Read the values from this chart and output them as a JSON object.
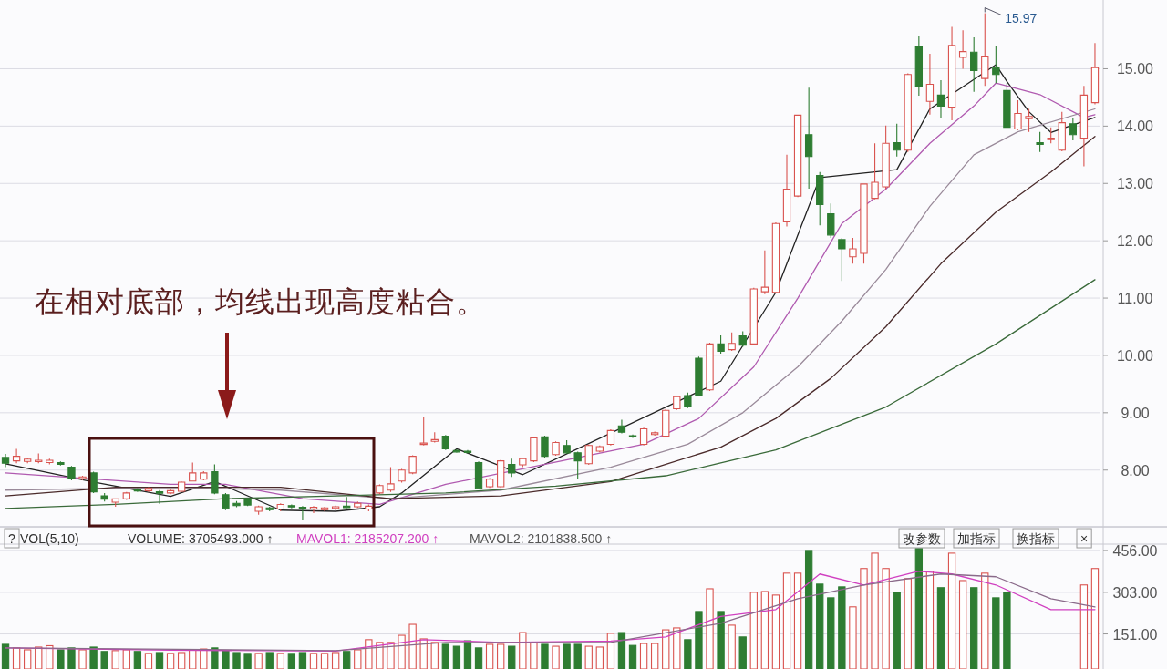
{
  "chart_data": [
    {
      "type": "candlestick",
      "categories": [
        null,
        null,
        null,
        null,
        null,
        null,
        null,
        null,
        null,
        null,
        null,
        null,
        null,
        null,
        null,
        null,
        null,
        null,
        null,
        null,
        null,
        null,
        null,
        null,
        null,
        null,
        null,
        null,
        null,
        null,
        null,
        null,
        null,
        null,
        null,
        null,
        null,
        null,
        null,
        null,
        null,
        null,
        null,
        null,
        null,
        null,
        null,
        null,
        null,
        null,
        null,
        null,
        null,
        null,
        null,
        null,
        null,
        null,
        null,
        null,
        null,
        null,
        null,
        null,
        null,
        null,
        null,
        null,
        null,
        null,
        null,
        null,
        null,
        null,
        null,
        null,
        null,
        null,
        null,
        null,
        null,
        null,
        null,
        null,
        null,
        null,
        null,
        null,
        null,
        null,
        null,
        null,
        null,
        null,
        null,
        null,
        null,
        null,
        null,
        null
      ],
      "ohlc": [
        [
          8.22,
          8.28,
          8.05,
          8.12
        ],
        [
          8.16,
          8.37,
          8.12,
          8.24
        ],
        [
          8.15,
          8.22,
          8.12,
          8.19
        ],
        [
          8.15,
          8.29,
          8.12,
          8.17
        ],
        [
          8.13,
          8.2,
          8.1,
          8.17
        ],
        [
          8.13,
          8.15,
          8.08,
          8.1
        ],
        [
          8.05,
          8.07,
          7.82,
          7.85
        ],
        [
          7.85,
          7.9,
          7.82,
          7.88
        ],
        [
          7.95,
          7.97,
          7.6,
          7.62
        ],
        [
          7.55,
          7.6,
          7.45,
          7.49
        ],
        [
          7.44,
          7.5,
          7.36,
          7.5
        ],
        [
          7.5,
          7.62,
          7.48,
          7.6
        ],
        [
          7.66,
          7.68,
          7.62,
          7.64
        ],
        [
          7.64,
          7.7,
          7.62,
          7.68
        ],
        [
          7.62,
          7.65,
          7.41,
          7.6
        ],
        [
          7.6,
          7.66,
          7.58,
          7.64
        ],
        [
          7.63,
          7.8,
          7.62,
          7.79
        ],
        [
          7.81,
          8.13,
          7.8,
          7.95
        ],
        [
          7.84,
          7.98,
          7.82,
          7.95
        ],
        [
          7.97,
          8.1,
          7.58,
          7.6
        ],
        [
          7.57,
          7.6,
          7.3,
          7.33
        ],
        [
          7.42,
          7.46,
          7.35,
          7.38
        ],
        [
          7.49,
          7.52,
          7.37,
          7.39
        ],
        [
          7.28,
          7.38,
          7.22,
          7.36
        ],
        [
          7.34,
          7.36,
          7.28,
          7.31
        ],
        [
          7.32,
          7.42,
          7.28,
          7.4
        ],
        [
          7.38,
          7.4,
          7.33,
          7.36
        ],
        [
          7.35,
          7.37,
          7.12,
          7.33
        ],
        [
          7.32,
          7.37,
          7.25,
          7.35
        ],
        [
          7.31,
          7.36,
          7.28,
          7.34
        ],
        [
          7.33,
          7.38,
          7.3,
          7.36
        ],
        [
          7.37,
          7.53,
          7.33,
          7.35
        ],
        [
          7.36,
          7.45,
          7.34,
          7.42
        ],
        [
          7.32,
          7.4,
          7.28,
          7.37
        ],
        [
          7.6,
          7.75,
          7.58,
          7.73
        ],
        [
          7.65,
          8.05,
          7.62,
          7.76
        ],
        [
          7.81,
          8.02,
          7.78,
          8.0
        ],
        [
          7.95,
          8.26,
          7.93,
          8.24
        ],
        [
          8.45,
          8.93,
          8.43,
          8.47
        ],
        [
          8.5,
          8.66,
          8.48,
          8.53
        ],
        [
          8.59,
          8.61,
          8.35,
          8.37
        ],
        [
          8.34,
          8.36,
          8.3,
          8.32
        ],
        [
          8.33,
          8.35,
          8.29,
          8.31
        ],
        [
          8.13,
          8.15,
          7.66,
          7.68
        ],
        [
          7.71,
          7.86,
          7.69,
          7.84
        ],
        [
          7.71,
          8.18,
          7.69,
          8.16
        ],
        [
          8.1,
          8.2,
          7.88,
          7.95
        ],
        [
          8.09,
          8.22,
          8.05,
          8.2
        ],
        [
          8.16,
          8.58,
          8.14,
          8.56
        ],
        [
          8.58,
          8.6,
          8.22,
          8.24
        ],
        [
          8.27,
          8.5,
          8.25,
          8.48
        ],
        [
          8.43,
          8.52,
          8.28,
          8.3
        ],
        [
          8.3,
          8.32,
          7.84,
          8.16
        ],
        [
          8.11,
          8.45,
          8.09,
          8.43
        ],
        [
          8.33,
          8.43,
          8.31,
          8.41
        ],
        [
          8.45,
          8.71,
          8.43,
          8.69
        ],
        [
          8.77,
          8.88,
          8.64,
          8.66
        ],
        [
          8.6,
          8.62,
          8.56,
          8.58
        ],
        [
          8.45,
          8.74,
          8.43,
          8.72
        ],
        [
          8.62,
          8.67,
          8.6,
          8.65
        ],
        [
          8.59,
          9.07,
          8.57,
          9.04
        ],
        [
          9.07,
          9.3,
          9.05,
          9.28
        ],
        [
          9.3,
          9.35,
          9.08,
          9.1
        ],
        [
          9.95,
          9.98,
          9.29,
          9.31
        ],
        [
          9.4,
          10.22,
          9.38,
          10.2
        ],
        [
          10.2,
          10.35,
          10.03,
          10.07
        ],
        [
          10.1,
          10.4,
          10.08,
          10.21
        ],
        [
          10.34,
          10.42,
          10.15,
          10.18
        ],
        [
          10.2,
          11.18,
          10.18,
          11.16
        ],
        [
          11.11,
          11.83,
          11.07,
          11.19
        ],
        [
          11.1,
          12.32,
          11.08,
          12.3
        ],
        [
          12.33,
          13.5,
          12.25,
          12.9
        ],
        [
          12.78,
          14.19,
          12.76,
          14.19
        ],
        [
          13.85,
          14.67,
          12.91,
          13.47
        ],
        [
          13.14,
          13.2,
          12.27,
          12.63
        ],
        [
          12.47,
          12.65,
          12.05,
          12.1
        ],
        [
          12.02,
          12.05,
          11.3,
          11.86
        ],
        [
          11.72,
          12.05,
          11.6,
          11.86
        ],
        [
          11.78,
          12.99,
          11.6,
          12.99
        ],
        [
          12.74,
          13.7,
          12.72,
          13.02
        ],
        [
          12.94,
          14.01,
          12.9,
          13.7
        ],
        [
          13.71,
          14.04,
          13.47,
          13.58
        ],
        [
          13.58,
          14.92,
          13.55,
          14.9
        ],
        [
          15.38,
          15.58,
          14.53,
          14.7
        ],
        [
          14.43,
          15.26,
          14.2,
          14.73
        ],
        [
          14.54,
          14.8,
          14.15,
          14.35
        ],
        [
          14.33,
          15.73,
          14.1,
          15.41
        ],
        [
          15.2,
          15.67,
          15.0,
          15.3
        ],
        [
          15.29,
          15.55,
          14.6,
          14.97
        ],
        [
          14.83,
          15.97,
          14.7,
          15.22
        ],
        [
          15.02,
          15.4,
          14.75,
          14.9
        ],
        [
          14.62,
          14.75,
          13.98,
          13.98
        ],
        [
          13.95,
          14.45,
          13.93,
          14.22
        ],
        [
          14.13,
          14.3,
          13.9,
          14.17
        ],
        [
          13.71,
          13.9,
          13.55,
          13.68
        ],
        [
          13.77,
          13.98,
          13.7,
          13.79
        ],
        [
          13.58,
          14.25,
          13.56,
          14.06
        ],
        [
          14.04,
          14.15,
          13.75,
          13.85
        ],
        [
          13.79,
          14.7,
          13.3,
          14.54
        ],
        [
          14.41,
          15.45,
          14.38,
          15.02
        ]
      ],
      "colors": [
        "#2e7d32",
        "#d9534f",
        "#d9534f",
        "#d9534f",
        "#d9534f",
        "#2e7d32",
        "#2e7d32",
        "#d9534f",
        "#2e7d32",
        "#2e7d32",
        "#d9534f",
        "#d9534f",
        "#2e7d32",
        "#d9534f",
        "#2e7d32",
        "#d9534f",
        "#d9534f",
        "#d9534f",
        "#d9534f",
        "#2e7d32",
        "#2e7d32",
        "#2e7d32",
        "#2e7d32",
        "#d9534f",
        "#2e7d32",
        "#d9534f",
        "#2e7d32",
        "#2e7d32",
        "#d9534f",
        "#d9534f",
        "#d9534f",
        "#2e7d32",
        "#d9534f",
        "#d9534f",
        "#d9534f",
        "#d9534f",
        "#d9534f",
        "#d9534f",
        "#d9534f",
        "#d9534f",
        "#2e7d32",
        "#2e7d32",
        "#2e7d32",
        "#2e7d32",
        "#d9534f",
        "#d9534f",
        "#2e7d32",
        "#d9534f",
        "#d9534f",
        "#2e7d32",
        "#d9534f",
        "#2e7d32",
        "#2e7d32",
        "#d9534f",
        "#d9534f",
        "#d9534f",
        "#2e7d32",
        "#2e7d32",
        "#d9534f",
        "#d9534f",
        "#d9534f",
        "#d9534f",
        "#2e7d32",
        "#2e7d32",
        "#d9534f",
        "#2e7d32",
        "#d9534f",
        "#2e7d32",
        "#d9534f",
        "#d9534f",
        "#d9534f",
        "#d9534f",
        "#d9534f",
        "#2e7d32",
        "#2e7d32",
        "#2e7d32",
        "#2e7d32",
        "#d9534f",
        "#d9534f",
        "#d9534f",
        "#d9534f",
        "#2e7d32",
        "#d9534f",
        "#2e7d32",
        "#d9534f",
        "#2e7d32",
        "#d9534f",
        "#d9534f",
        "#2e7d32",
        "#d9534f",
        "#2e7d32",
        "#2e7d32",
        "#d9534f",
        "#d9534f",
        "#2e7d32",
        "#d9534f",
        "#d9534f",
        "#2e7d32",
        "#d9534f",
        "#d9534f"
      ],
      "series": [
        {
          "type": "line",
          "color": "#222222",
          "values": [
            8.11,
            null,
            null,
            null,
            null,
            null,
            null,
            null,
            7.79,
            null,
            null,
            null,
            null,
            null,
            null,
            7.54,
            null,
            null,
            null,
            7.8,
            null,
            null,
            null,
            null,
            null,
            7.3,
            null,
            null,
            null,
            null,
            7.28,
            null,
            null,
            null,
            7.36,
            null,
            7.6,
            null,
            null,
            null,
            null,
            8.37,
            null,
            null,
            null,
            null,
            null,
            7.92,
            null,
            null,
            null,
            null,
            null,
            null,
            null,
            null,
            null,
            null,
            null,
            null,
            null,
            null,
            null,
            null,
            null,
            9.55,
            null,
            null,
            null,
            null,
            11.1,
            null,
            null,
            null,
            13.1,
            null,
            null,
            null,
            null,
            null,
            null,
            13.24,
            null,
            null,
            14.3,
            null,
            null,
            null,
            null,
            null,
            15.07,
            14.78,
            null,
            14.25,
            null,
            13.89,
            null,
            null,
            null,
            14.15
          ]
        },
        {
          "type": "line",
          "color": "#b05ab0",
          "values": [
            7.95,
            null,
            null,
            null,
            null,
            null,
            null,
            null,
            null,
            null,
            null,
            null,
            null,
            null,
            null,
            7.75,
            null,
            null,
            null,
            null,
            7.75,
            null,
            null,
            null,
            null,
            null,
            null,
            7.5,
            null,
            null,
            null,
            null,
            null,
            null,
            7.4,
            null,
            null,
            null,
            null,
            null,
            7.75,
            null,
            null,
            null,
            null,
            null,
            null,
            null,
            null,
            null,
            null,
            null,
            null,
            null,
            null,
            null,
            null,
            null,
            8.45,
            null,
            null,
            null,
            null,
            8.9,
            null,
            null,
            null,
            null,
            9.8,
            null,
            null,
            null,
            11.0,
            null,
            null,
            null,
            12.3,
            null,
            null,
            null,
            12.9,
            null,
            null,
            null,
            13.7,
            null,
            null,
            null,
            14.35,
            null,
            14.75,
            null,
            null,
            null,
            14.55,
            null,
            null,
            null,
            14.15,
            14.2
          ]
        },
        {
          "type": "line",
          "color": "#9a8a9a",
          "values": [
            7.65,
            null,
            null,
            null,
            null,
            null,
            null,
            null,
            null,
            null,
            null,
            null,
            null,
            null,
            null,
            7.7,
            null,
            null,
            null,
            null,
            null,
            null,
            null,
            null,
            null,
            7.65,
            null,
            null,
            null,
            null,
            null,
            null,
            null,
            null,
            null,
            7.5,
            null,
            null,
            null,
            null,
            null,
            null,
            null,
            null,
            null,
            7.65,
            null,
            null,
            null,
            null,
            null,
            null,
            null,
            null,
            null,
            8.05,
            null,
            null,
            null,
            null,
            null,
            null,
            8.45,
            null,
            null,
            null,
            null,
            9.0,
            null,
            null,
            null,
            null,
            9.8,
            null,
            null,
            null,
            10.6,
            null,
            null,
            null,
            11.5,
            null,
            null,
            null,
            12.6,
            null,
            null,
            null,
            13.5,
            null,
            null,
            null,
            13.9,
            null,
            null,
            null,
            null,
            null,
            null,
            14.3
          ]
        },
        {
          "type": "line",
          "color": "#4a2a2a",
          "values": [
            7.55,
            null,
            null,
            null,
            null,
            null,
            null,
            null,
            null,
            null,
            7.7,
            null,
            null,
            null,
            null,
            null,
            null,
            null,
            null,
            null,
            null,
            null,
            null,
            null,
            null,
            7.7,
            null,
            null,
            null,
            null,
            null,
            null,
            null,
            null,
            null,
            7.5,
            null,
            null,
            null,
            null,
            null,
            null,
            null,
            null,
            null,
            7.55,
            null,
            null,
            null,
            null,
            null,
            null,
            null,
            null,
            null,
            7.8,
            null,
            null,
            null,
            null,
            null,
            null,
            null,
            null,
            null,
            8.4,
            null,
            null,
            null,
            null,
            8.9,
            null,
            null,
            null,
            null,
            9.6,
            null,
            null,
            null,
            null,
            10.5,
            null,
            null,
            null,
            null,
            11.6,
            null,
            null,
            null,
            null,
            12.5,
            null,
            null,
            null,
            null,
            13.2,
            null,
            null,
            null,
            13.82
          ]
        },
        {
          "type": "line",
          "color": "#3a6a3a",
          "values": [
            7.33,
            null,
            null,
            null,
            null,
            null,
            null,
            null,
            null,
            null,
            7.4,
            null,
            null,
            null,
            null,
            null,
            null,
            null,
            null,
            null,
            7.5,
            null,
            null,
            null,
            null,
            null,
            null,
            null,
            null,
            null,
            7.55,
            null,
            null,
            null,
            null,
            null,
            null,
            null,
            null,
            null,
            7.6,
            null,
            null,
            null,
            null,
            null,
            null,
            null,
            null,
            null,
            7.72,
            null,
            null,
            null,
            null,
            null,
            null,
            null,
            null,
            null,
            7.9,
            null,
            null,
            null,
            null,
            null,
            null,
            null,
            null,
            null,
            8.35,
            null,
            null,
            null,
            null,
            null,
            null,
            null,
            null,
            null,
            9.1,
            null,
            null,
            null,
            null,
            null,
            null,
            null,
            null,
            null,
            10.2,
            null,
            null,
            null,
            null,
            null,
            null,
            null,
            null,
            11.32
          ]
        }
      ],
      "ylim": [
        7.01,
        16.2
      ],
      "yticks": [
        {
          "value": 8,
          "label": "8.00"
        },
        {
          "value": 9,
          "label": "9.00"
        },
        {
          "value": 10,
          "label": "10.00"
        },
        {
          "value": 11,
          "label": "11.00"
        },
        {
          "value": 12,
          "label": "12.00"
        },
        {
          "value": 13,
          "label": "13.00"
        },
        {
          "value": 14,
          "label": "14.00"
        },
        {
          "value": 15,
          "label": "15.00"
        }
      ],
      "grid": "y",
      "tick_labels": "y",
      "annotations": [
        "在相对底部，均线出现高度粘合。",
        "15.97"
      ]
    },
    {
      "type": "bar",
      "categories": [
        null,
        null,
        null,
        null,
        null,
        null,
        null,
        null,
        null,
        null,
        null,
        null,
        null,
        null,
        null,
        null,
        null,
        null,
        null,
        null,
        null,
        null,
        null,
        null,
        null,
        null,
        null,
        null,
        null,
        null,
        null,
        null,
        null,
        null,
        null,
        null,
        null,
        null,
        null,
        null,
        null,
        null,
        null,
        null,
        null,
        null,
        null,
        null,
        null,
        null,
        null,
        null,
        null,
        null,
        null,
        null,
        null,
        null,
        null,
        null,
        null,
        null,
        null,
        null,
        null,
        null,
        null,
        null,
        null,
        null,
        null,
        null,
        null,
        null,
        null,
        null,
        null,
        null,
        null,
        null,
        null,
        null,
        null,
        null,
        null,
        null,
        null,
        null,
        null,
        null,
        null,
        null,
        null,
        null,
        null,
        null,
        null,
        null,
        null,
        null
      ],
      "values": [
        113,
        100,
        93,
        103,
        108,
        93,
        100,
        93,
        103,
        87,
        90,
        93,
        87,
        80,
        83,
        80,
        83,
        93,
        96,
        100,
        90,
        83,
        80,
        80,
        83,
        80,
        80,
        83,
        80,
        80,
        83,
        87,
        93,
        130,
        120,
        120,
        146,
        186,
        133,
        120,
        113,
        106,
        126,
        100,
        113,
        113,
        106,
        156,
        120,
        113,
        106,
        113,
        113,
        106,
        103,
        153,
        156,
        109,
        116,
        116,
        166,
        173,
        130,
        233,
        316,
        233,
        183,
        140,
        303,
        306,
        293,
        373,
        373,
        456,
        333,
        283,
        323,
        250,
        390,
        446,
        390,
        303,
        353,
        463,
        380,
        320,
        446,
        346,
        320,
        373,
        283,
        303,
        null,
        null,
        null,
        null,
        null,
        null,
        330,
        390
      ],
      "colors": [
        "#2e7d32",
        "#d9534f",
        "#d9534f",
        "#d9534f",
        "#d9534f",
        "#2e7d32",
        "#2e7d32",
        "#d9534f",
        "#2e7d32",
        "#2e7d32",
        "#d9534f",
        "#d9534f",
        "#2e7d32",
        "#d9534f",
        "#2e7d32",
        "#d9534f",
        "#d9534f",
        "#d9534f",
        "#d9534f",
        "#2e7d32",
        "#2e7d32",
        "#2e7d32",
        "#2e7d32",
        "#d9534f",
        "#2e7d32",
        "#d9534f",
        "#2e7d32",
        "#2e7d32",
        "#d9534f",
        "#d9534f",
        "#d9534f",
        "#2e7d32",
        "#d9534f",
        "#d9534f",
        "#d9534f",
        "#d9534f",
        "#d9534f",
        "#d9534f",
        "#d9534f",
        "#d9534f",
        "#2e7d32",
        "#2e7d32",
        "#2e7d32",
        "#2e7d32",
        "#d9534f",
        "#d9534f",
        "#2e7d32",
        "#d9534f",
        "#d9534f",
        "#2e7d32",
        "#d9534f",
        "#2e7d32",
        "#2e7d32",
        "#d9534f",
        "#d9534f",
        "#d9534f",
        "#2e7d32",
        "#2e7d32",
        "#d9534f",
        "#d9534f",
        "#d9534f",
        "#d9534f",
        "#2e7d32",
        "#2e7d32",
        "#d9534f",
        "#2e7d32",
        "#d9534f",
        "#2e7d32",
        "#d9534f",
        "#d9534f",
        "#d9534f",
        "#d9534f",
        "#d9534f",
        "#2e7d32",
        "#2e7d32",
        "#2e7d32",
        "#2e7d32",
        "#d9534f",
        "#d9534f",
        "#d9534f",
        "#d9534f",
        "#2e7d32",
        "#d9534f",
        "#2e7d32",
        "#d9534f",
        "#2e7d32",
        "#d9534f",
        "#d9534f",
        "#2e7d32",
        "#d9534f",
        "#2e7d32",
        "#2e7d32",
        null,
        null,
        null,
        null,
        null,
        null,
        "#d9534f",
        "#d9534f"
      ],
      "series": [
        {
          "type": "line",
          "color": "#d040c0",
          "values": [
            100,
            null,
            null,
            null,
            null,
            null,
            null,
            null,
            null,
            null,
            null,
            null,
            null,
            null,
            null,
            92,
            null,
            null,
            null,
            null,
            null,
            null,
            null,
            null,
            null,
            null,
            null,
            null,
            null,
            null,
            88,
            null,
            null,
            null,
            null,
            null,
            null,
            null,
            130,
            null,
            null,
            null,
            null,
            null,
            null,
            120,
            null,
            null,
            null,
            null,
            null,
            null,
            null,
            null,
            null,
            125,
            null,
            null,
            null,
            null,
            140,
            null,
            null,
            null,
            null,
            215,
            null,
            null,
            null,
            null,
            240,
            null,
            null,
            null,
            370,
            null,
            null,
            null,
            330,
            null,
            null,
            null,
            null,
            380,
            null,
            null,
            370,
            null,
            null,
            null,
            330,
            null,
            null,
            null,
            null,
            240,
            null,
            null,
            null,
            240
          ]
        },
        {
          "type": "line",
          "color": "#8a6a8a",
          "values": [
            100,
            null,
            null,
            null,
            null,
            null,
            null,
            null,
            null,
            null,
            null,
            null,
            null,
            null,
            null,
            null,
            null,
            null,
            null,
            null,
            null,
            null,
            null,
            null,
            null,
            null,
            null,
            null,
            null,
            null,
            90,
            null,
            null,
            null,
            null,
            null,
            null,
            null,
            null,
            null,
            120,
            null,
            null,
            null,
            null,
            null,
            null,
            null,
            null,
            null,
            null,
            null,
            null,
            null,
            null,
            120,
            null,
            null,
            null,
            null,
            null,
            null,
            null,
            null,
            null,
            190,
            null,
            null,
            null,
            null,
            null,
            null,
            280,
            null,
            null,
            null,
            null,
            null,
            330,
            null,
            null,
            null,
            null,
            null,
            null,
            370,
            null,
            null,
            null,
            null,
            360,
            null,
            null,
            null,
            null,
            280,
            null,
            null,
            null,
            250
          ]
        }
      ],
      "ylim": [
        23,
        479
      ],
      "yticks": [
        {
          "value": 151,
          "label": "151.00"
        },
        {
          "value": 303,
          "label": "303.00"
        },
        {
          "value": 456,
          "label": "456.00"
        }
      ],
      "grid": "y",
      "tick_labels": "y",
      "annotations": [
        "?",
        "VOL(5,10)",
        "VOLUME: 3705493.000 ↑",
        "MAVOL1: 2185207.200 ↑",
        "MAVOL2: 2101838.500 ↑",
        "改参数",
        "加指标",
        "换指标",
        "×"
      ]
    }
  ]
}
